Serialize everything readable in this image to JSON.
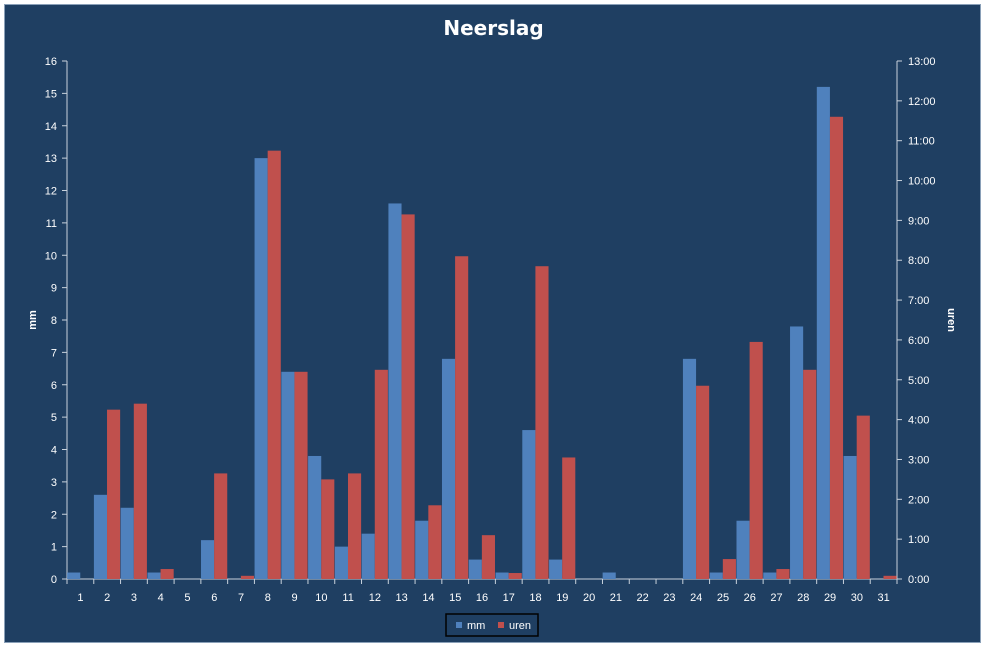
{
  "colors": {
    "background": "#1f3f62",
    "mm": "#4f81bd",
    "uren": "#c0504d",
    "text": "#ffffff",
    "axis": "#c8d2dc"
  },
  "chart_data": {
    "type": "bar",
    "title": "Neerslag",
    "xlabel": "",
    "ylabel": "mm",
    "ylabel_right": "uren",
    "categories": [
      "1",
      "2",
      "3",
      "4",
      "5",
      "6",
      "7",
      "8",
      "9",
      "10",
      "11",
      "12",
      "13",
      "14",
      "15",
      "16",
      "17",
      "18",
      "19",
      "20",
      "21",
      "22",
      "23",
      "24",
      "25",
      "26",
      "27",
      "28",
      "29",
      "30",
      "31"
    ],
    "ylim": [
      0,
      16
    ],
    "yticks": [
      "0",
      "1",
      "2",
      "3",
      "4",
      "5",
      "6",
      "7",
      "8",
      "9",
      "10",
      "11",
      "12",
      "13",
      "14",
      "15",
      "16"
    ],
    "ylim_right_hours": [
      0,
      13
    ],
    "yticks_right": [
      "0:00",
      "1:00",
      "2:00",
      "3:00",
      "4:00",
      "5:00",
      "6:00",
      "7:00",
      "8:00",
      "9:00",
      "10:00",
      "11:00",
      "12:00",
      "13:00"
    ],
    "series": [
      {
        "name": "mm",
        "axis": "left",
        "values": [
          0.2,
          2.6,
          2.2,
          0.2,
          0,
          1.2,
          0,
          13.0,
          6.4,
          3.8,
          1.0,
          1.4,
          11.6,
          1.8,
          6.8,
          0.6,
          0.2,
          4.6,
          0.6,
          0,
          0.2,
          0,
          0,
          6.8,
          0.2,
          1.8,
          0.2,
          7.8,
          15.2,
          3.8,
          0
        ]
      },
      {
        "name": "uren",
        "axis": "right",
        "values": [
          0,
          4.25,
          4.4,
          0.25,
          0,
          2.65,
          0.08,
          10.75,
          5.2,
          2.5,
          2.65,
          5.25,
          9.15,
          1.85,
          8.1,
          1.1,
          0.15,
          7.85,
          3.05,
          0,
          0,
          0,
          0,
          4.85,
          0.5,
          5.95,
          0.25,
          5.25,
          11.6,
          4.1,
          0.08
        ]
      }
    ],
    "legend": "bottom"
  }
}
